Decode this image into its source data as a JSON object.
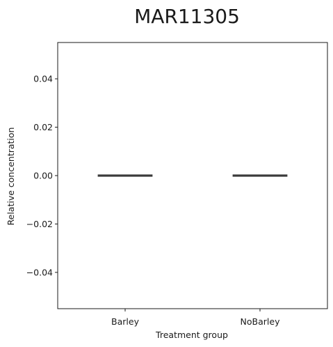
{
  "chart_data": {
    "type": "box",
    "title": "MAR11305",
    "xlabel": "Treatment group",
    "ylabel": "Relative concentration",
    "categories": [
      "Barley",
      "NoBarley"
    ],
    "boxes": [
      {
        "category": "Barley",
        "min": 0.0,
        "q1": 0.0,
        "median": 0.0,
        "q3": 0.0,
        "max": 0.0
      },
      {
        "category": "NoBarley",
        "min": 0.0,
        "q1": 0.0,
        "median": 0.0,
        "q3": 0.0,
        "max": 0.0
      }
    ],
    "ylim": [
      -0.055,
      0.055
    ],
    "yticks": [
      -0.04,
      -0.02,
      0.0,
      0.02,
      0.04
    ],
    "ytick_labels": [
      "−0.04",
      "−0.02",
      "0.00",
      "0.02",
      "0.04"
    ],
    "grid": false,
    "box_color": "#3a3a3a"
  }
}
